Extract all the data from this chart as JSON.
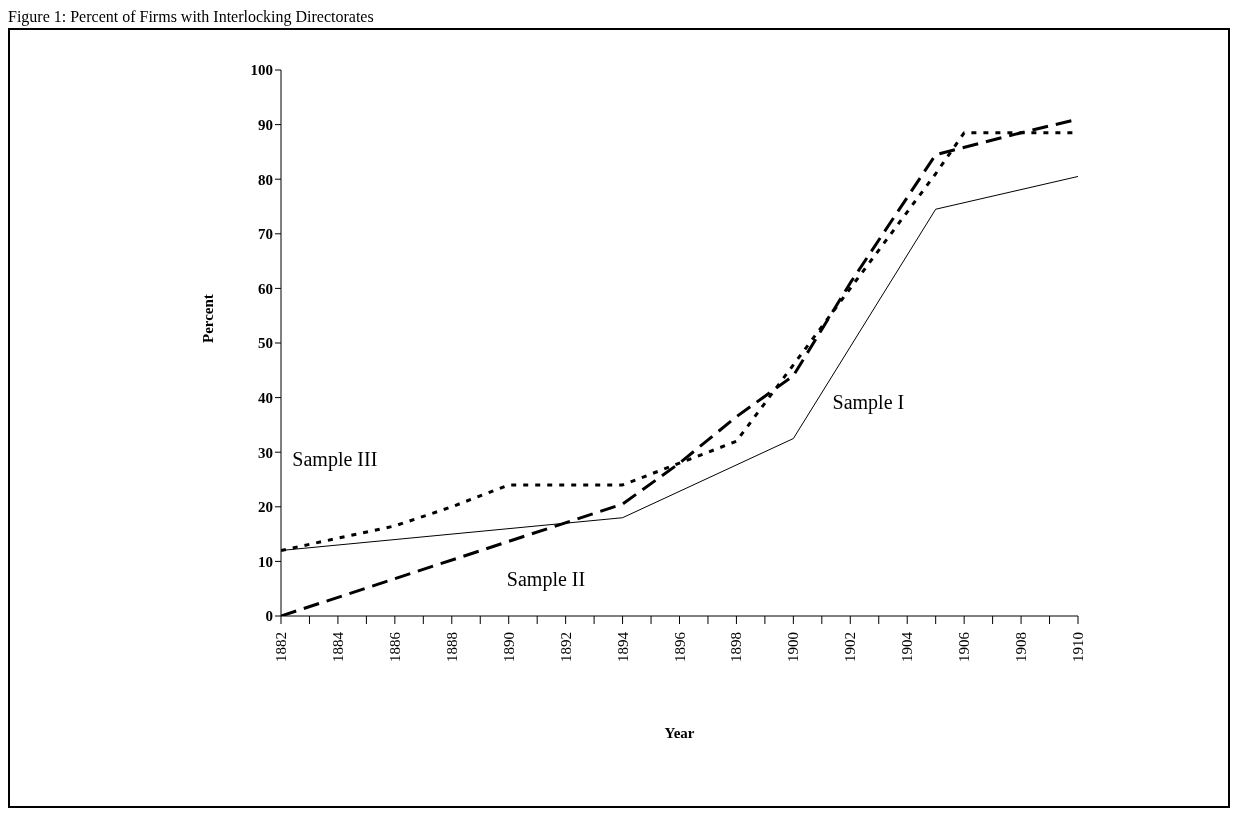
{
  "chart_data": {
    "type": "line",
    "title": "Figure 1: Percent of Firms with Interlocking Directorates",
    "xlabel": "Year",
    "ylabel": "Percent",
    "xlim": [
      1882,
      1910
    ],
    "xticks": [
      1882,
      {
        "value": 1883,
        "label": null
      },
      1884,
      {
        "value": 1885,
        "label": null
      },
      1886,
      {
        "value": 1887,
        "label": null
      },
      1888,
      {
        "value": 1889,
        "label": null
      },
      1890,
      {
        "value": 1891,
        "label": null
      },
      1892,
      {
        "value": 1893,
        "label": null
      },
      1894,
      {
        "value": 1895,
        "label": null
      },
      1896,
      {
        "value": 1897,
        "label": null
      },
      1898,
      {
        "value": 1899,
        "label": null
      },
      1900,
      {
        "value": 1901,
        "label": null
      },
      1902,
      {
        "value": 1903,
        "label": null
      },
      1904,
      {
        "value": 1905,
        "label": null
      },
      1906,
      {
        "value": 1907,
        "label": null
      },
      1908,
      {
        "value": 1909,
        "label": null
      },
      1910
    ],
    "ylim": [
      0,
      100
    ],
    "yticks": [
      0,
      10,
      20,
      30,
      40,
      50,
      60,
      70,
      80,
      90,
      100
    ],
    "grid": false,
    "marker": "none",
    "series": [
      {
        "name": "Sample I",
        "color": "#000000",
        "line_style": "solid",
        "x": [
          1882,
          1894,
          1900,
          1905,
          1910
        ],
        "values": [
          12,
          18,
          32.5,
          74.5,
          80.5
        ]
      },
      {
        "name": "Sample II",
        "color": "#000000",
        "line_style": "dashed",
        "x": [
          1882,
          1894,
          1896,
          1898,
          1900,
          1902,
          1905,
          1908,
          1910
        ],
        "values": [
          0,
          20.5,
          28,
          36.5,
          44,
          61,
          84.5,
          88.5,
          91
        ]
      },
      {
        "name": "Sample III",
        "color": "#000000",
        "line_style": "dotted",
        "x": [
          1882,
          1886,
          1888,
          1890,
          1894,
          1896,
          1898,
          1900,
          1902,
          1905,
          1906,
          1910
        ],
        "values": [
          12,
          16.5,
          20,
          24,
          24,
          28,
          32,
          46,
          60,
          81,
          88.5,
          88.5
        ]
      }
    ]
  }
}
